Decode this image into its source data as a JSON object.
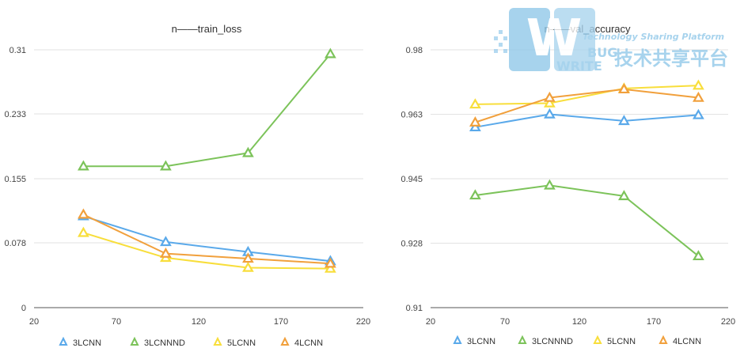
{
  "watermark": {
    "tagline": "Technology Sharing Platform",
    "word1": "BUG",
    "word2": "WRITE",
    "cn": "技术共享平台",
    "color": "#8fc7e8"
  },
  "chart_data": [
    {
      "type": "line",
      "title": "n——train_loss",
      "x": [
        50,
        100,
        150,
        200
      ],
      "xlim": [
        20,
        220
      ],
      "xticks": [
        20,
        70,
        120,
        170,
        220
      ],
      "ylim": [
        0,
        0.31
      ],
      "yticks": [
        0,
        0.078,
        0.155,
        0.233,
        0.31
      ],
      "ytick_labels": [
        "0",
        "0.078",
        "0.155",
        "0.233",
        "0.31"
      ],
      "series": [
        {
          "name": "3LCNN",
          "color": "#5aa9ea",
          "values": [
            0.11,
            0.079,
            0.067,
            0.056
          ]
        },
        {
          "name": "3LCNNND",
          "color": "#7cc35a",
          "values": [
            0.17,
            0.17,
            0.186,
            0.305
          ]
        },
        {
          "name": "5LCNN",
          "color": "#f8de3b",
          "values": [
            0.09,
            0.06,
            0.048,
            0.047
          ]
        },
        {
          "name": "4LCNN",
          "color": "#f1a03c",
          "values": [
            0.112,
            0.065,
            0.059,
            0.053
          ]
        }
      ]
    },
    {
      "type": "line",
      "title": "n——val_accuracy",
      "x": [
        50,
        100,
        150,
        200
      ],
      "xlim": [
        20,
        220
      ],
      "xticks": [
        20,
        70,
        120,
        170,
        220
      ],
      "ylim": [
        0.91,
        0.98
      ],
      "yticks": [
        0.91,
        0.9275,
        0.945,
        0.9625,
        0.98
      ],
      "ytick_labels": [
        "0.91",
        "0.928",
        "0.945",
        "0.963",
        "0.98"
      ],
      "series": [
        {
          "name": "3LCNN",
          "color": "#5aa9ea",
          "values": [
            0.959,
            0.9625,
            0.9607,
            0.9623
          ]
        },
        {
          "name": "3LCNNND",
          "color": "#7cc35a",
          "values": [
            0.9405,
            0.9432,
            0.9403,
            0.924
          ]
        },
        {
          "name": "5LCNN",
          "color": "#f8de3b",
          "values": [
            0.9652,
            0.9655,
            0.9695,
            0.9703
          ]
        },
        {
          "name": "4LCNN",
          "color": "#f1a03c",
          "values": [
            0.9603,
            0.967,
            0.9693,
            0.967
          ]
        }
      ]
    }
  ]
}
